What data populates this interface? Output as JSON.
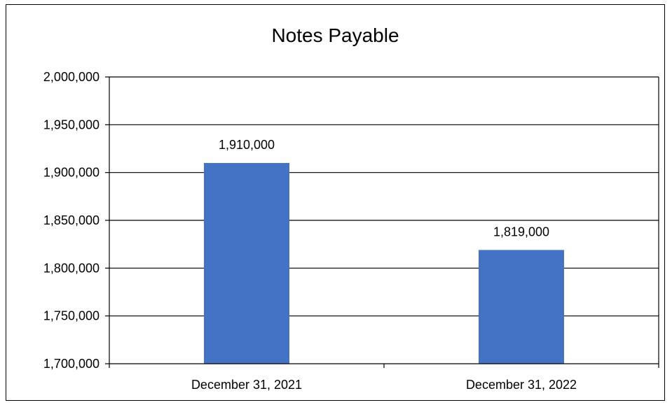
{
  "chart_data": {
    "type": "bar",
    "title": "Notes Payable",
    "categories": [
      "December 31, 2021",
      "December 31, 2022"
    ],
    "values": [
      1910000,
      1819000
    ],
    "data_labels": [
      "1,910,000",
      "1,819,000"
    ],
    "xlabel": "",
    "ylabel": "",
    "ylim": [
      1700000,
      2000000
    ],
    "yticks": [
      1700000,
      1750000,
      1800000,
      1850000,
      1900000,
      1950000,
      2000000
    ],
    "ytick_labels": [
      "1,700,000",
      "1,750,000",
      "1,800,000",
      "1,850,000",
      "1,900,000",
      "1,950,000",
      "2,000,000"
    ],
    "grid": true,
    "legend": "none",
    "colors": {
      "bar": "#4472C4",
      "grid": "#000000",
      "axis": "#000000",
      "text": "#000000"
    }
  }
}
